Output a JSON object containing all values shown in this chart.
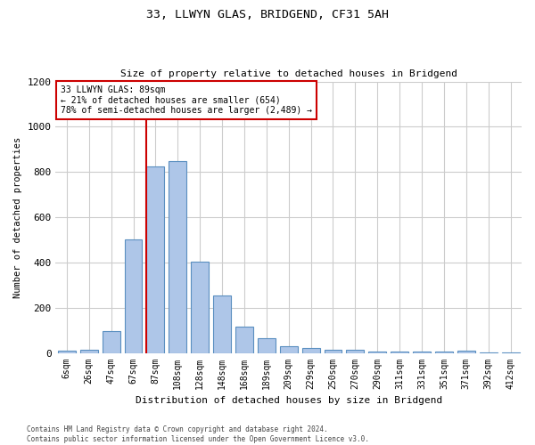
{
  "title_line1": "33, LLWYN GLAS, BRIDGEND, CF31 5AH",
  "title_line2": "Size of property relative to detached houses in Bridgend",
  "xlabel": "Distribution of detached houses by size in Bridgend",
  "ylabel": "Number of detached properties",
  "categories": [
    "6sqm",
    "26sqm",
    "47sqm",
    "67sqm",
    "87sqm",
    "108sqm",
    "128sqm",
    "148sqm",
    "168sqm",
    "189sqm",
    "209sqm",
    "229sqm",
    "250sqm",
    "270sqm",
    "290sqm",
    "311sqm",
    "331sqm",
    "351sqm",
    "371sqm",
    "392sqm",
    "412sqm"
  ],
  "values": [
    10,
    13,
    98,
    500,
    825,
    848,
    405,
    255,
    117,
    65,
    30,
    22,
    14,
    14,
    5,
    5,
    5,
    5,
    10,
    4,
    3
  ],
  "bar_color": "#aec6e8",
  "bar_edge_color": "#5a8fc0",
  "highlight_bar_index": 4,
  "highlight_color": "#cc0000",
  "annotation_line1": "33 LLWYN GLAS: 89sqm",
  "annotation_line2": "← 21% of detached houses are smaller (654)",
  "annotation_line3": "78% of semi-detached houses are larger (2,489) →",
  "vline_bar_index": 4,
  "ylim": [
    0,
    1200
  ],
  "yticks": [
    0,
    200,
    400,
    600,
    800,
    1000,
    1200
  ],
  "footer_line1": "Contains HM Land Registry data © Crown copyright and database right 2024.",
  "footer_line2": "Contains public sector information licensed under the Open Government Licence v3.0.",
  "bg_color": "#ffffff",
  "grid_color": "#cccccc",
  "annotation_box_color": "#cc0000",
  "bar_width": 0.8
}
